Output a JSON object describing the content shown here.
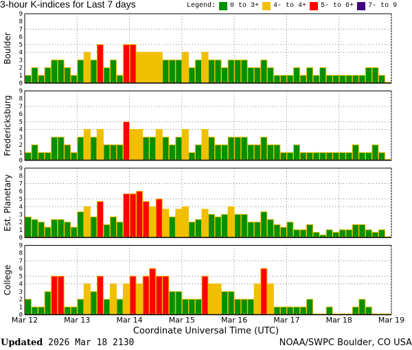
{
  "title": "3-hour K-indices for Last 7 days",
  "legend": {
    "label": "Legend:",
    "items": [
      {
        "label": "0 to 3+",
        "color": "#009000"
      },
      {
        "label": "4- to 4+",
        "color": "#f0c000"
      },
      {
        "label": "5- to 6+",
        "color": "#ff0000"
      },
      {
        "label": "7- to 9",
        "color": "#400080"
      }
    ]
  },
  "footer": {
    "updated_label": "Updated",
    "updated_value": "2026 Mar 18 2130",
    "source": "NOAA/SWPC Boulder, CO USA"
  },
  "chart_data": {
    "type": "bar",
    "title": "3-hour K-indices for Last 7 days",
    "xlabel": "Coordinate Universal Time (UTC)",
    "x_ticks": [
      "Mar 12",
      "Mar 13",
      "Mar 14",
      "Mar 15",
      "Mar 16",
      "Mar 17",
      "Mar 18",
      "Mar 19"
    ],
    "y_ticks": [
      "0",
      "1",
      "2",
      "3",
      "4",
      "5",
      "6",
      "7",
      "8",
      "9"
    ],
    "ylim": [
      0,
      9
    ],
    "grid_y": [
      4,
      5,
      7
    ],
    "bars_per_day": 8,
    "panels": [
      {
        "name": "Boulder",
        "values": [
          1,
          2,
          1,
          2,
          3,
          3,
          2,
          1,
          3,
          4,
          3,
          5,
          2,
          3,
          1,
          5,
          5,
          4,
          4,
          4,
          4,
          3,
          3,
          3,
          4,
          2,
          3,
          4,
          3,
          3,
          2,
          3,
          3,
          3,
          2,
          2,
          3,
          2,
          1,
          1,
          1,
          2,
          1,
          2,
          1,
          2,
          1,
          1,
          1,
          1,
          1,
          1,
          2,
          2,
          1,
          0
        ]
      },
      {
        "name": "Fredericksburg",
        "values": [
          1,
          2,
          1,
          1,
          3,
          3,
          2,
          1,
          3,
          4,
          3,
          4,
          2,
          2,
          2,
          5,
          4,
          4,
          3,
          3,
          4,
          3,
          2,
          3,
          4,
          1,
          2,
          4,
          3,
          2,
          2,
          3,
          3,
          3,
          2,
          2,
          3,
          2,
          2,
          1,
          1,
          2,
          1,
          1,
          1,
          1,
          1,
          1,
          1,
          1,
          2,
          1,
          1,
          2,
          1,
          0
        ]
      },
      {
        "name": "Est. Planetary",
        "values": [
          2.67,
          2.33,
          2,
          1.33,
          2.33,
          2.33,
          2,
          1.33,
          3.33,
          4,
          2.67,
          4.67,
          1.67,
          2.67,
          2,
          5.67,
          5.67,
          6,
          4.67,
          4,
          5,
          3.67,
          2.67,
          3.67,
          4,
          2,
          2.33,
          3.67,
          3,
          2.67,
          3,
          4,
          3,
          3,
          2,
          2,
          3.33,
          2.33,
          1.67,
          1.33,
          2,
          1,
          1,
          1.67,
          0.67,
          0.33,
          1,
          0.67,
          1,
          1,
          1.67,
          1.67,
          1,
          0.67,
          1,
          0
        ]
      },
      {
        "name": "College",
        "values": [
          2,
          1,
          1,
          3,
          5,
          5,
          1,
          1,
          2,
          4,
          3,
          5,
          2,
          4,
          2,
          4,
          5,
          4,
          5,
          6,
          5,
          5,
          3,
          3,
          2,
          2,
          2,
          5,
          4,
          4,
          3,
          3,
          2,
          2,
          2,
          4,
          6,
          4,
          1,
          1,
          1,
          1,
          1,
          2,
          0,
          0,
          1,
          0,
          0,
          0,
          1,
          2,
          1,
          0,
          0,
          0
        ]
      }
    ]
  }
}
